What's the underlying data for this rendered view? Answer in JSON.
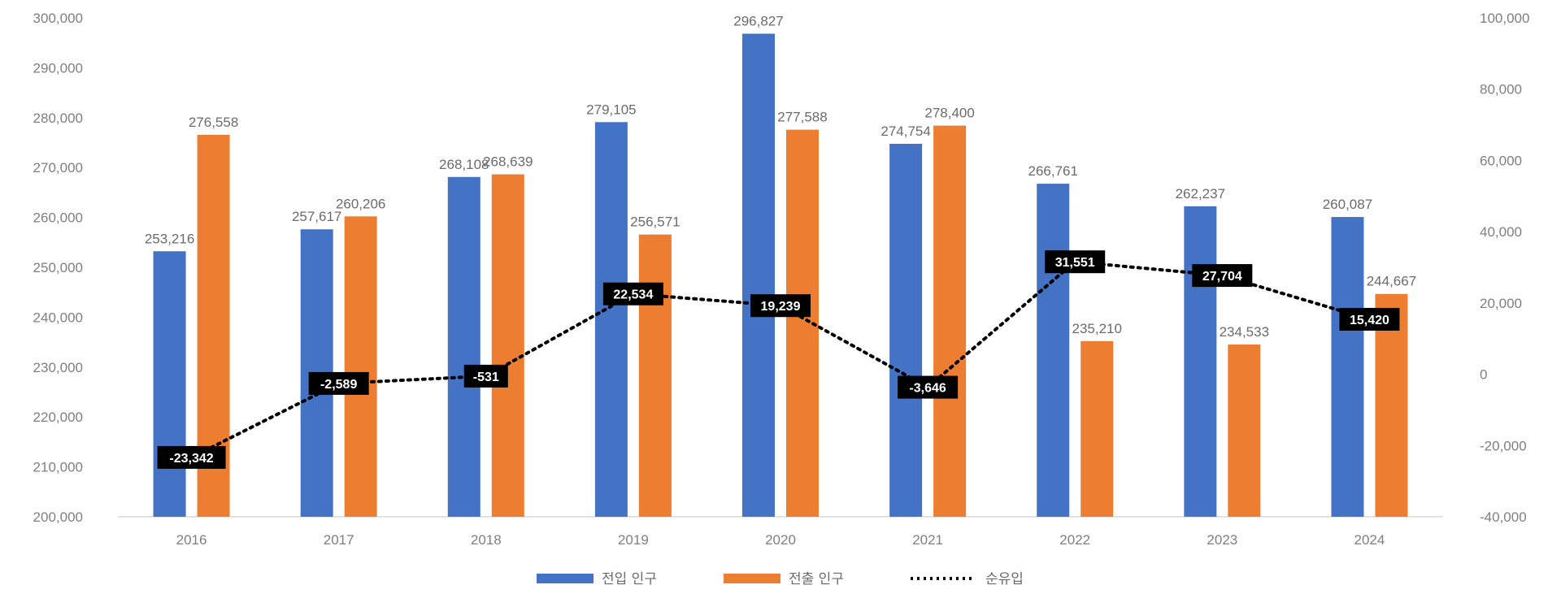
{
  "chart_data": {
    "type": "bar",
    "categories": [
      "2016",
      "2017",
      "2018",
      "2019",
      "2020",
      "2021",
      "2022",
      "2023",
      "2024"
    ],
    "series": [
      {
        "name": "전입 인구",
        "axis": "left",
        "kind": "bar",
        "color": "#4472c4",
        "values": [
          253216,
          257617,
          268108,
          279105,
          296827,
          274754,
          266761,
          262237,
          260087
        ],
        "labels": [
          "253,216",
          "257,617",
          "268,108",
          "279,105",
          "296,827",
          "274,754",
          "266,761",
          "262,237",
          "260,087"
        ]
      },
      {
        "name": "전출 인구",
        "axis": "left",
        "kind": "bar",
        "color": "#ed7d31",
        "values": [
          276558,
          260206,
          268639,
          256571,
          277588,
          278400,
          235210,
          234533,
          244667
        ],
        "labels": [
          "276,558",
          "260,206",
          "268,639",
          "256,571",
          "277,588",
          "278,400",
          "235,210",
          "234,533",
          "244,667"
        ]
      },
      {
        "name": "순유입",
        "axis": "right",
        "kind": "line-dotted",
        "color": "#000000",
        "values": [
          -23342,
          -2589,
          -531,
          22534,
          19239,
          -3646,
          31551,
          27704,
          15420
        ],
        "labels": [
          "-23,342",
          "-2,589",
          "-531",
          "22,534",
          "19,239",
          "-3,646",
          "31,551",
          "27,704",
          "15,420"
        ]
      }
    ],
    "y_left": {
      "min": 200000,
      "max": 300000,
      "step": 10000,
      "tick_labels": [
        "200,000",
        "210,000",
        "220,000",
        "230,000",
        "240,000",
        "250,000",
        "260,000",
        "270,000",
        "280,000",
        "290,000",
        "300,000"
      ]
    },
    "y_right": {
      "min": -40000,
      "max": 100000,
      "step": 20000,
      "tick_labels": [
        "-40,000",
        "-20,000",
        "0",
        "20,000",
        "40,000",
        "60,000",
        "80,000",
        "100,000"
      ]
    },
    "grid": false,
    "legend_position": "bottom"
  }
}
